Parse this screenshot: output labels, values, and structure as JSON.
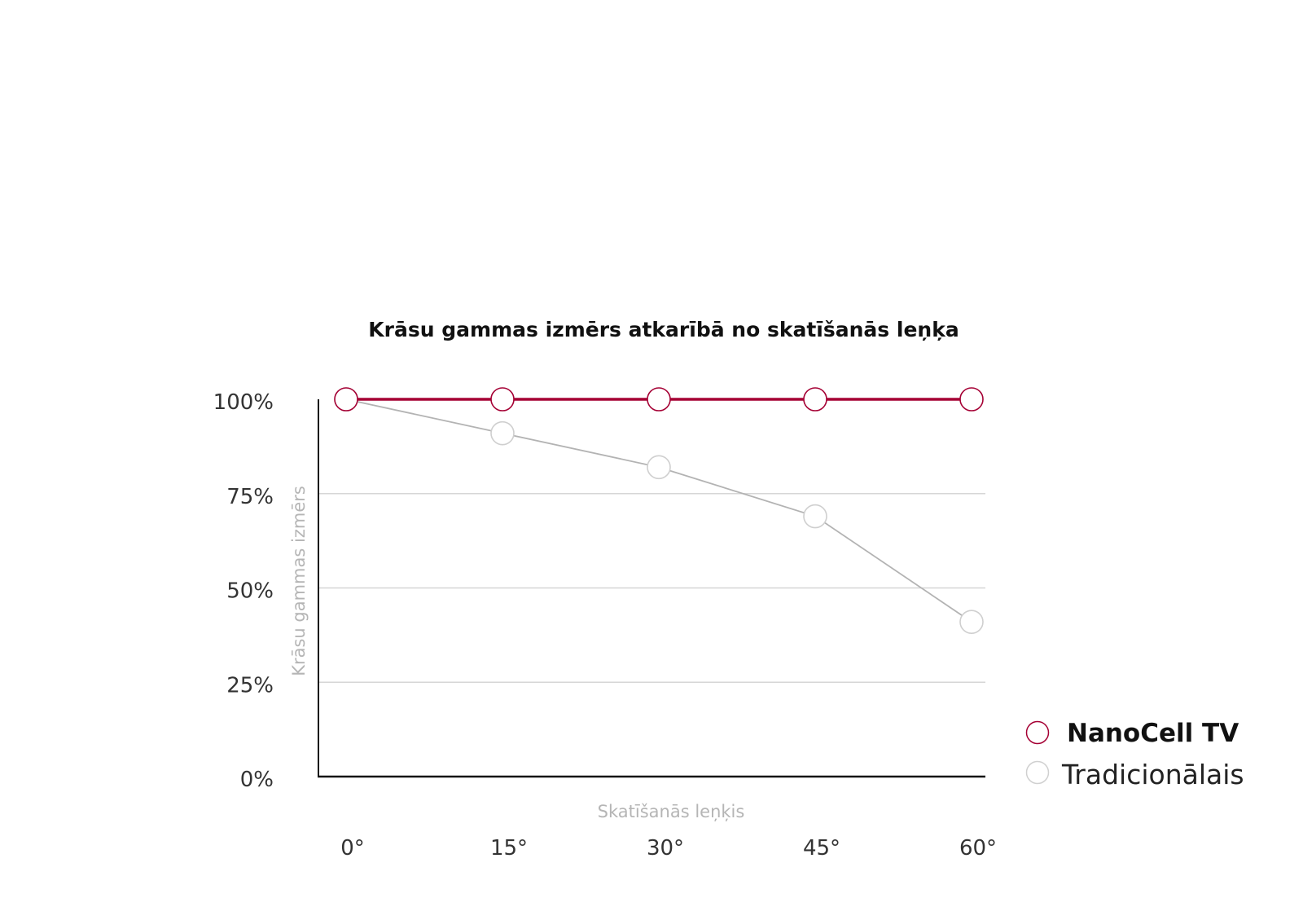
{
  "chart_data": {
    "type": "line",
    "title": "Krāsu gammas izmērs atkarībā no skatīšanās leņķa",
    "xlabel": "Skatīšanās leņķis",
    "ylabel": "Krāsu gammas izmērs",
    "categories": [
      "0°",
      "15°",
      "30°",
      "45°",
      "60°"
    ],
    "y_ticks": [
      "0%",
      "25%",
      "50%",
      "75%",
      "100%"
    ],
    "ylim": [
      0,
      100
    ],
    "grid": true,
    "legend_placement": "bottom-right",
    "series": [
      {
        "name": "NanoCell TV",
        "values": [
          100,
          100,
          100,
          100,
          100
        ],
        "color": "#a50034"
      },
      {
        "name": "Tradicionālais",
        "values": [
          100,
          91,
          82,
          69,
          41
        ],
        "color": "#b3b3b3"
      }
    ]
  }
}
